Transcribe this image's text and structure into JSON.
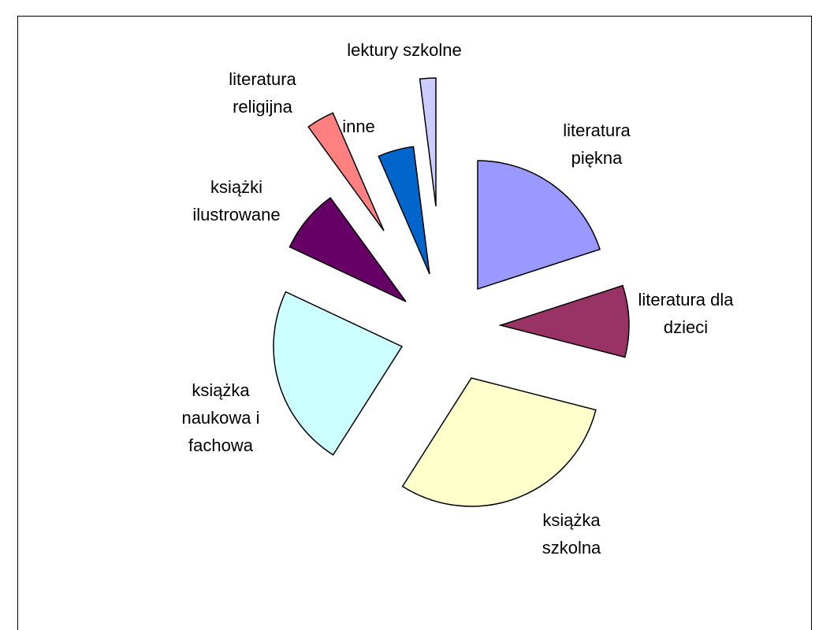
{
  "chart_data": {
    "type": "pie",
    "categories": [
      "literatura piękna",
      "literatura dla dzieci",
      "książka szkolna",
      "książka naukowa i fachowa",
      "książki ilustrowane",
      "literatura religijna",
      "inne",
      "lektury szkolne"
    ],
    "values": [
      20,
      9,
      30,
      23,
      8,
      3.5,
      4.5,
      2
    ],
    "colors": [
      "#9999ff",
      "#993366",
      "#ffffcc",
      "#ccffff",
      "#660066",
      "#ff8080",
      "#0066cc",
      "#ccccff"
    ]
  }
}
